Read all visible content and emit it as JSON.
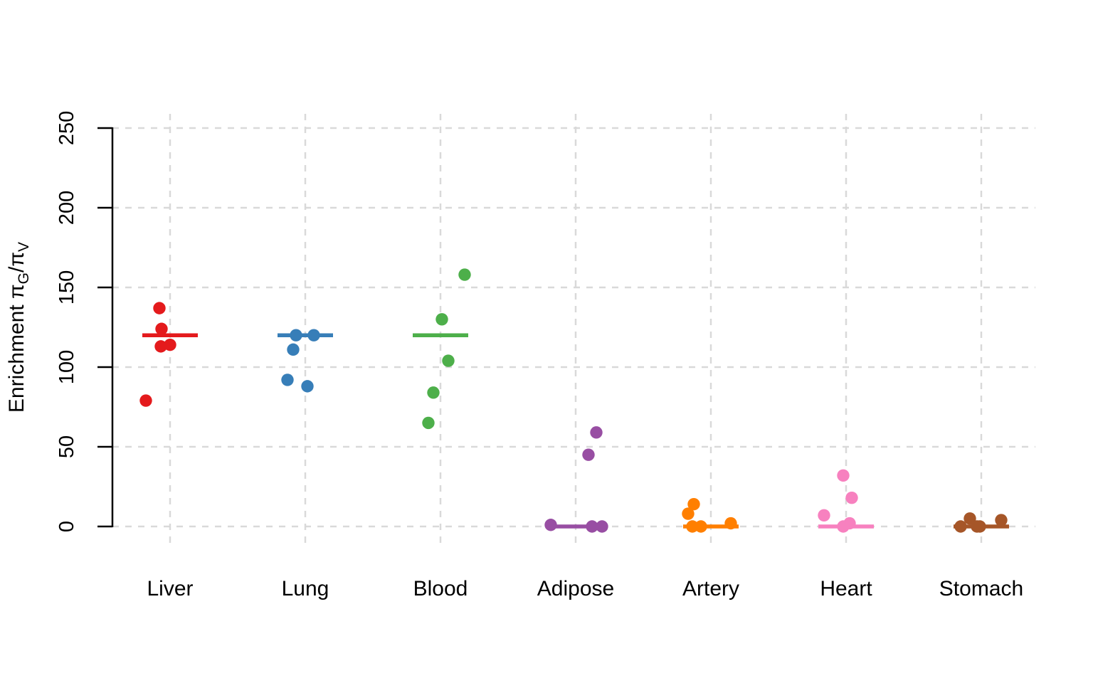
{
  "figure": {
    "kind": "strip-chart",
    "background": "#ffffff"
  },
  "chart_data": {
    "type": "scatter",
    "subtype": "strip-plot-with-center-lines",
    "title": "",
    "xlabel": "",
    "ylabel": "Enrichment πG/πV",
    "ylabel_parts": [
      {
        "text": "Enrichment π",
        "sub": false
      },
      {
        "text": "G",
        "sub": true
      },
      {
        "text": "/π",
        "sub": false
      },
      {
        "text": "V",
        "sub": true
      }
    ],
    "ylim": [
      0,
      250
    ],
    "yticks": [
      0,
      50,
      100,
      150,
      200,
      250
    ],
    "grid": true,
    "grid_style": "dashed",
    "grid_color": "#d9d9d9",
    "axis_color": "#000000",
    "legend": "none",
    "categories": [
      "Liver",
      "Lung",
      "Blood",
      "Adipose",
      "Artery",
      "Heart",
      "Stomach"
    ],
    "series": [
      {
        "name": "Liver",
        "color": "#e41a1c",
        "center_line": 120,
        "points": [
          {
            "y": 137,
            "dx": -15
          },
          {
            "y": 124,
            "dx": -12
          },
          {
            "y": 113,
            "dx": -13
          },
          {
            "y": 114,
            "dx": 0
          },
          {
            "y": 79,
            "dx": -34
          }
        ]
      },
      {
        "name": "Lung",
        "color": "#377eb8",
        "center_line": 120,
        "points": [
          {
            "y": 120,
            "dx": -13
          },
          {
            "y": 120,
            "dx": 12
          },
          {
            "y": 111,
            "dx": -17
          },
          {
            "y": 92,
            "dx": -25
          },
          {
            "y": 88,
            "dx": 3
          }
        ]
      },
      {
        "name": "Blood",
        "color": "#4daf4a",
        "center_line": 120,
        "points": [
          {
            "y": 158,
            "dx": 34
          },
          {
            "y": 130,
            "dx": 2
          },
          {
            "y": 104,
            "dx": 11
          },
          {
            "y": 84,
            "dx": -10
          },
          {
            "y": 65,
            "dx": -17
          }
        ]
      },
      {
        "name": "Adipose",
        "color": "#984ea3",
        "center_line": 0,
        "points": [
          {
            "y": 59,
            "dx": 29
          },
          {
            "y": 45,
            "dx": 18
          },
          {
            "y": 1,
            "dx": -35
          },
          {
            "y": 0,
            "dx": 23
          },
          {
            "y": 0,
            "dx": 37
          }
        ]
      },
      {
        "name": "Artery",
        "color": "#ff7f00",
        "center_line": 0,
        "points": [
          {
            "y": 14,
            "dx": -24
          },
          {
            "y": 8,
            "dx": -32
          },
          {
            "y": 2,
            "dx": 28
          },
          {
            "y": 0,
            "dx": -26
          },
          {
            "y": 0,
            "dx": -14
          }
        ]
      },
      {
        "name": "Heart",
        "color": "#f781bf",
        "center_line": 0,
        "points": [
          {
            "y": 32,
            "dx": -4
          },
          {
            "y": 18,
            "dx": 8
          },
          {
            "y": 7,
            "dx": -31
          },
          {
            "y": 2,
            "dx": 5
          },
          {
            "y": 0,
            "dx": -4
          }
        ]
      },
      {
        "name": "Stomach",
        "color": "#a65628",
        "center_line": 0,
        "points": [
          {
            "y": 5,
            "dx": -16
          },
          {
            "y": 4,
            "dx": 28
          },
          {
            "y": 0,
            "dx": -29
          },
          {
            "y": 0,
            "dx": -2
          },
          {
            "y": 0,
            "dx": -6
          }
        ]
      }
    ]
  }
}
